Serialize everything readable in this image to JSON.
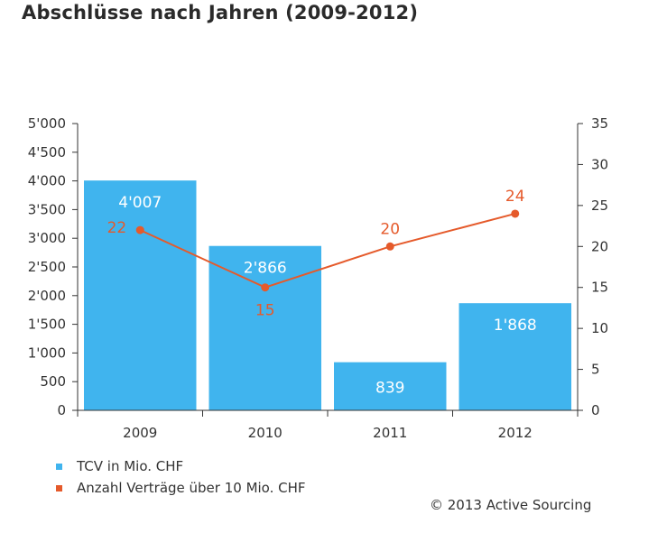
{
  "title": "Abschlüsse nach Jahren (2009-2012)",
  "copyright": "© 2013 Active Sourcing",
  "colors": {
    "bar": "#40b4ee",
    "line": "#e55a2b",
    "axis": "#333333",
    "text": "#333333"
  },
  "chart_data": {
    "type": "bar",
    "title": "Abschlüsse nach Jahren (2009-2012)",
    "categories": [
      "2009",
      "2010",
      "2011",
      "2012"
    ],
    "ylim_left": [
      0,
      5000
    ],
    "yticks_left": [
      "0",
      "500",
      "1'000",
      "1'500",
      "2'000",
      "2'500",
      "3'000",
      "3'500",
      "4'000",
      "4'500",
      "5'000"
    ],
    "ylim_right": [
      0,
      35
    ],
    "yticks_right": [
      "0",
      "5",
      "10",
      "15",
      "20",
      "25",
      "30",
      "35"
    ],
    "grid": false,
    "legend_position": "bottom-left",
    "series": [
      {
        "name": "TCV in Mio. CHF",
        "type": "bar",
        "axis": "left",
        "values": [
          4007,
          2866,
          839,
          1868
        ],
        "labels": [
          "4'007",
          "2'866",
          "839",
          "1'868"
        ]
      },
      {
        "name": "Anzahl Verträge über 10 Mio. CHF",
        "type": "line",
        "axis": "right",
        "values": [
          22,
          15,
          20,
          24
        ],
        "labels": [
          "22",
          "15",
          "20",
          "24"
        ]
      }
    ]
  }
}
